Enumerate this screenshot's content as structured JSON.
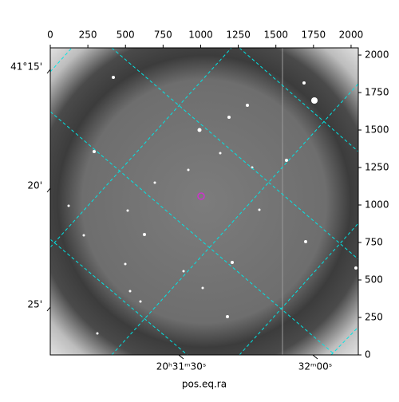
{
  "chart_data": {
    "type": "image",
    "xlabel": "pos.eq.ra",
    "xlim": [
      0,
      2048
    ],
    "ylim": [
      0,
      2048
    ],
    "xticks": [
      0,
      250,
      500,
      750,
      1000,
      1250,
      1500,
      1750,
      2000
    ],
    "yticks": [
      0,
      250,
      500,
      750,
      1000,
      1250,
      1500,
      1750,
      2000
    ],
    "ra_labels": [
      "20ʰ31ᵐ30ˢ",
      "32ᵐ00ˢ"
    ],
    "dec_labels": [
      "41°15'",
      "20'",
      "25'"
    ]
  }
}
